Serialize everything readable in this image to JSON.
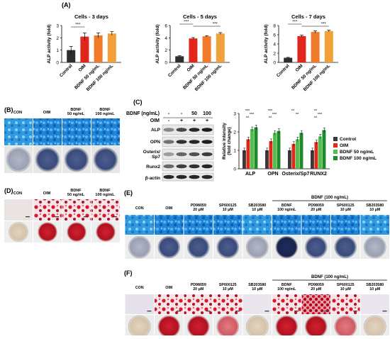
{
  "panels": {
    "A": "(A)",
    "B": "(B)",
    "C": "(C)",
    "D": "(D)",
    "E": "(E)",
    "F": "(F)"
  },
  "colors": {
    "control": "#2e2e2e",
    "oim": "#e1261c",
    "bdnf50": "#f07a2a",
    "bdnf100": "#f2a13a",
    "wb_control": "#3a3a3a",
    "wb_oim": "#e1261c",
    "wb_bdnf50": "#4cc24c",
    "wb_bdnf100": "#1f8a2a",
    "alp_stain": "#2a86d6",
    "ars_stain": "#d0142a"
  },
  "chart_data": [
    {
      "type": "bar",
      "title": "Cells - 3 days",
      "ylabel": "ALP activity (fold)",
      "categories": [
        "Control",
        "OIM",
        "BDNF 50 ng/mL",
        "BDNF 100 ng/mL"
      ],
      "values": [
        1.0,
        2.1,
        2.2,
        2.35
      ],
      "errors": [
        0.3,
        0.3,
        0.2,
        0.15
      ],
      "ylim": [
        0,
        3
      ],
      "yticks": [
        "0",
        "1",
        "2",
        "3"
      ],
      "significance": [
        "***"
      ]
    },
    {
      "type": "bar",
      "title": "Cells - 5 days",
      "ylabel": "ALP activity (fold)",
      "categories": [
        "Control",
        "OIM",
        "BDNF 50 ng/mL",
        "BDNF 100 ng/mL"
      ],
      "values": [
        1.0,
        3.9,
        4.25,
        4.7
      ],
      "errors": [
        0.1,
        0.15,
        0.1,
        0.15
      ],
      "ylim": [
        0,
        6
      ],
      "yticks": [
        "0",
        "2",
        "4",
        "6"
      ],
      "significance": [
        "***",
        "***"
      ]
    },
    {
      "type": "bar",
      "title": "Cells - 7 days",
      "ylabel": "ALP activity (fold)",
      "categories": [
        "Control",
        "OIM",
        "BDNF 50 ng/mL",
        "BDNF 100 ng/mL"
      ],
      "values": [
        1.0,
        5.7,
        6.6,
        6.8
      ],
      "errors": [
        0.1,
        0.2,
        0.25,
        0.2
      ],
      "ylim": [
        0,
        8
      ],
      "yticks": [
        "0",
        "2",
        "4",
        "6",
        "8"
      ],
      "significance": [
        "***",
        "***"
      ]
    },
    {
      "type": "bar",
      "ylabel": "Relative intensity (fold change)",
      "categories": [
        "ALP",
        "OPN",
        "Osterix/Sp7",
        "RUNX2"
      ],
      "series": [
        {
          "name": "Control",
          "values": [
            1.0,
            1.0,
            1.0,
            1.0
          ]
        },
        {
          "name": "OIM",
          "values": [
            1.6,
            1.5,
            1.35,
            1.45
          ]
        },
        {
          "name": "BDNF 50 ng/mL",
          "values": [
            2.15,
            1.95,
            1.6,
            1.75
          ]
        },
        {
          "name": "BDNF 100 ng/mL",
          "values": [
            2.25,
            2.05,
            1.95,
            2.1
          ]
        }
      ],
      "ylim": [
        0,
        3
      ],
      "yticks": [
        "0",
        "1",
        "2",
        "3"
      ],
      "significance": [
        "***",
        "***",
        "**",
        "***",
        "***",
        "**",
        "**",
        "**",
        "**",
        "***",
        "**"
      ]
    }
  ],
  "panelB": {
    "labels": [
      "CON",
      "OIM",
      "BDNF\n50 ng/mL",
      "BDNF\n100 ng/mL"
    ]
  },
  "panelC": {
    "bdnf_label": "BDNF (ng/mL)",
    "bdnf_values": [
      "-",
      "-",
      "50",
      "100"
    ],
    "oim_label": "OIM",
    "oim_values": [
      "-",
      "+",
      "+",
      "+"
    ],
    "bands": [
      "ALP",
      "OPN",
      "Osterix/\nSp7",
      "Runx2",
      "β-actin"
    ]
  },
  "panelD": {
    "labels": [
      "CON",
      "OIM",
      "BDNF\n50 ng/mL",
      "BDNF\n100 ng/mL"
    ]
  },
  "panelE": {
    "bracket": "BDNF (100 ng/mL)",
    "labels": [
      "CON",
      "OIM",
      "PD98059\n20 μM",
      "SP600125\n10 μM",
      "SB203580\n10 μM",
      "BDNF\n100 ng/mL",
      "PD98059\n20 μM",
      "SP600125\n10 μM",
      "SB203580\n10 μM"
    ]
  },
  "panelF": {
    "bracket": "BDNF (100 ng/mL)",
    "labels": [
      "CON",
      "OIM",
      "PD98059\n20 μM",
      "SP600125\n10 μM",
      "SB203580\n10 μM",
      "BDNF\n100 ng/mL",
      "PD98059\n20 μM",
      "SP600125\n10 μM",
      "SB203580\n10 μM"
    ]
  }
}
